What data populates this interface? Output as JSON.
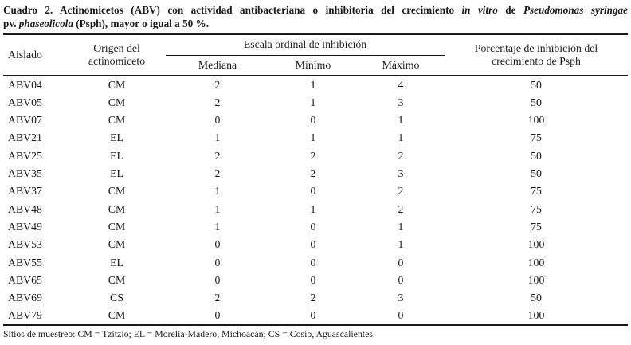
{
  "colors": {
    "text": "#1a1a1a",
    "rule": "#1a1a1a",
    "background": "#ffffff"
  },
  "caption": {
    "lines": [
      [
        {
          "t": "Cuadro 2. Actinomicetos (ABV) con actividad antibacteriana o inhibitoria del crecimiento ",
          "i": false
        },
        {
          "t": "in vitro",
          "i": true
        },
        {
          "t": " de ",
          "i": false
        },
        {
          "t": "Pseudomonas syringae",
          "i": true
        }
      ],
      [
        {
          "t": "pv. ",
          "i": false
        },
        {
          "t": "phaseolicola",
          "i": true
        },
        {
          "t": " (Psph), mayor o igual a 50 %.",
          "i": false
        }
      ]
    ]
  },
  "table": {
    "headers": {
      "aislado": "Aislado",
      "origen_line1": "Origen del",
      "origen_line2": "actinomiceto",
      "escala_group": "Escala ordinal de inhibición",
      "mediana": "Mediana",
      "minimo": "Mínimo",
      "maximo": "Máximo",
      "porcentaje_line1": "Porcentaje de inhibición del",
      "porcentaje_line2": "crecimiento de Psph"
    },
    "row_fields": [
      "aislado",
      "origen",
      "mediana",
      "minimo",
      "maximo",
      "porcentaje"
    ],
    "rows": [
      {
        "aislado": "ABV04",
        "origen": "CM",
        "mediana": "2",
        "minimo": "1",
        "maximo": "4",
        "porcentaje": "50"
      },
      {
        "aislado": "ABV05",
        "origen": "CM",
        "mediana": "2",
        "minimo": "1",
        "maximo": "3",
        "porcentaje": "50"
      },
      {
        "aislado": "ABV07",
        "origen": "CM",
        "mediana": "0",
        "minimo": "0",
        "maximo": "1",
        "porcentaje": "100"
      },
      {
        "aislado": "ABV21",
        "origen": "EL",
        "mediana": "1",
        "minimo": "1",
        "maximo": "1",
        "porcentaje": "75"
      },
      {
        "aislado": "ABV25",
        "origen": "EL",
        "mediana": "2",
        "minimo": "2",
        "maximo": "2",
        "porcentaje": "50"
      },
      {
        "aislado": "ABV35",
        "origen": "EL",
        "mediana": "2",
        "minimo": "2",
        "maximo": "3",
        "porcentaje": "50"
      },
      {
        "aislado": "ABV37",
        "origen": "CM",
        "mediana": "1",
        "minimo": "0",
        "maximo": "2",
        "porcentaje": "75"
      },
      {
        "aislado": "ABV48",
        "origen": "CM",
        "mediana": "1",
        "minimo": "1",
        "maximo": "2",
        "porcentaje": "75"
      },
      {
        "aislado": "ABV49",
        "origen": "CM",
        "mediana": "1",
        "minimo": "0",
        "maximo": "1",
        "porcentaje": "75"
      },
      {
        "aislado": "ABV53",
        "origen": "CM",
        "mediana": "0",
        "minimo": "0",
        "maximo": "1",
        "porcentaje": "100"
      },
      {
        "aislado": "ABV55",
        "origen": "EL",
        "mediana": "0",
        "minimo": "0",
        "maximo": "0",
        "porcentaje": "100"
      },
      {
        "aislado": "ABV65",
        "origen": "CM",
        "mediana": "0",
        "minimo": "0",
        "maximo": "0",
        "porcentaje": "100"
      },
      {
        "aislado": "ABV69",
        "origen": "CS",
        "mediana": "2",
        "minimo": "2",
        "maximo": "3",
        "porcentaje": "50"
      },
      {
        "aislado": "ABV79",
        "origen": "CM",
        "mediana": "0",
        "minimo": "0",
        "maximo": "0",
        "porcentaje": "100"
      }
    ]
  },
  "footnote": "Sitios de muestreo: CM = Tzitzio; EL = Morelia-Madero, Michoacán; CS = Cosío, Aguascalientes."
}
